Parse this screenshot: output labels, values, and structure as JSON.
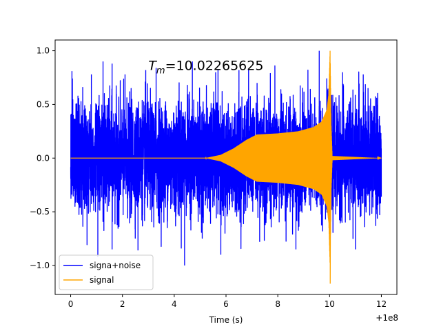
{
  "chart_data": {
    "type": "line",
    "title": "",
    "xlabel": "Time (s)",
    "ylabel": "",
    "x_offset_label": "+1e8",
    "xlim": [
      -0.6,
      12.6
    ],
    "ylim": [
      -1.27,
      1.1
    ],
    "x_ticks": [
      0,
      2,
      4,
      6,
      8,
      10,
      12
    ],
    "x_tick_labels": [
      "0",
      "2",
      "4",
      "6",
      "8",
      "10",
      "12"
    ],
    "y_ticks": [
      -1.0,
      -0.5,
      0.0,
      0.5,
      1.0
    ],
    "y_tick_labels": [
      "−1.0",
      "−0.5",
      "0.0",
      "0.5",
      "1.0"
    ],
    "grid": false,
    "legend_position": "lower-left",
    "annotation": {
      "prefix": "T",
      "subscript": "m",
      "rest": "=10.02265625",
      "x": 3.0,
      "y": 0.82
    },
    "series": [
      {
        "name": "signa+noise",
        "color": "#0000ff",
        "description": "noisy time series spanning x 0 to 12, approximately symmetric about 0, typical amplitude about 0.4 with peaks near 1.0 and -1.0",
        "x_range": [
          0,
          12
        ],
        "typical_amplitude": 0.4,
        "peak_amplitude": 1.0,
        "spikes": [
          {
            "x": 0.05,
            "y": 0.81
          },
          {
            "x": 0.8,
            "y": 0.78
          },
          {
            "x": 1.25,
            "y": 0.9
          },
          {
            "x": 1.6,
            "y": 0.88
          },
          {
            "x": 2.1,
            "y": 0.78
          },
          {
            "x": 2.9,
            "y": 0.82
          },
          {
            "x": 3.3,
            "y": 0.84
          },
          {
            "x": 4.7,
            "y": 0.9
          },
          {
            "x": 5.6,
            "y": 0.8
          },
          {
            "x": 6.5,
            "y": 0.82
          },
          {
            "x": 7.2,
            "y": 0.7
          },
          {
            "x": 9.6,
            "y": 1.0
          },
          {
            "x": 10.5,
            "y": 0.8
          },
          {
            "x": 11.3,
            "y": 0.78
          },
          {
            "x": 1.05,
            "y": -0.92
          },
          {
            "x": 1.6,
            "y": -0.85
          },
          {
            "x": 2.6,
            "y": -0.86
          },
          {
            "x": 4.4,
            "y": -1.0
          },
          {
            "x": 5.8,
            "y": -0.9
          },
          {
            "x": 7.3,
            "y": -0.78
          },
          {
            "x": 8.7,
            "y": -0.85
          },
          {
            "x": 11.0,
            "y": -0.85
          }
        ]
      },
      {
        "name": "signal",
        "color": "#ffa500",
        "description": "chirp signal: near zero until about 5.5, envelope grows to about 0.22 by 7, slowly rises to about 0.3 near 9.7, sharp peak at about 10.02 (max 1.0, min -1.17), then returns to 0",
        "envelope": [
          {
            "x": 0,
            "amp": 0.0
          },
          {
            "x": 5.2,
            "amp": 0.0
          },
          {
            "x": 5.8,
            "amp": 0.03
          },
          {
            "x": 6.3,
            "amp": 0.09
          },
          {
            "x": 6.8,
            "amp": 0.17
          },
          {
            "x": 7.2,
            "amp": 0.22
          },
          {
            "x": 8.0,
            "amp": 0.23
          },
          {
            "x": 8.8,
            "amp": 0.25
          },
          {
            "x": 9.4,
            "amp": 0.29
          },
          {
            "x": 9.7,
            "amp": 0.34
          },
          {
            "x": 9.9,
            "amp": 0.45
          },
          {
            "x": 9.97,
            "amp": 0.6
          },
          {
            "x": 10.02,
            "amp": 1.0
          },
          {
            "x": 10.06,
            "amp": 0.3
          },
          {
            "x": 10.1,
            "amp": 0.02
          },
          {
            "x": 12,
            "amp": 0.0
          }
        ],
        "peak": {
          "x": 10.02,
          "max": 1.0,
          "min": -1.17
        }
      }
    ]
  }
}
